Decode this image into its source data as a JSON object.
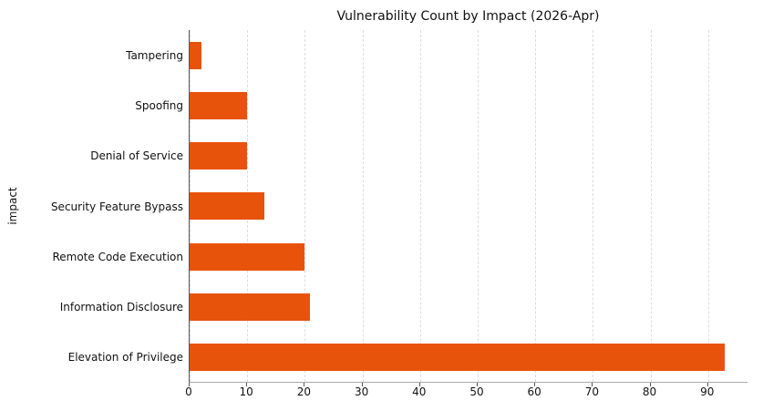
{
  "chart_data": {
    "type": "bar",
    "orientation": "horizontal",
    "title": "Vulnerability Count by Impact (2026-Apr)",
    "xlabel": "",
    "ylabel": "impact",
    "categories_top_to_bottom": [
      "Tampering",
      "Spoofing",
      "Denial of Service",
      "Security Feature Bypass",
      "Remote Code Execution",
      "Information Disclosure",
      "Elevation of Privilege"
    ],
    "values": [
      2,
      10,
      10,
      13,
      20,
      21,
      93
    ],
    "xticks": [
      0,
      10,
      20,
      30,
      40,
      50,
      60,
      70,
      80,
      90
    ],
    "xlim": [
      0,
      97
    ],
    "grid": "vertical-dashed",
    "legend": "none",
    "bar_color": "#e8530c"
  }
}
